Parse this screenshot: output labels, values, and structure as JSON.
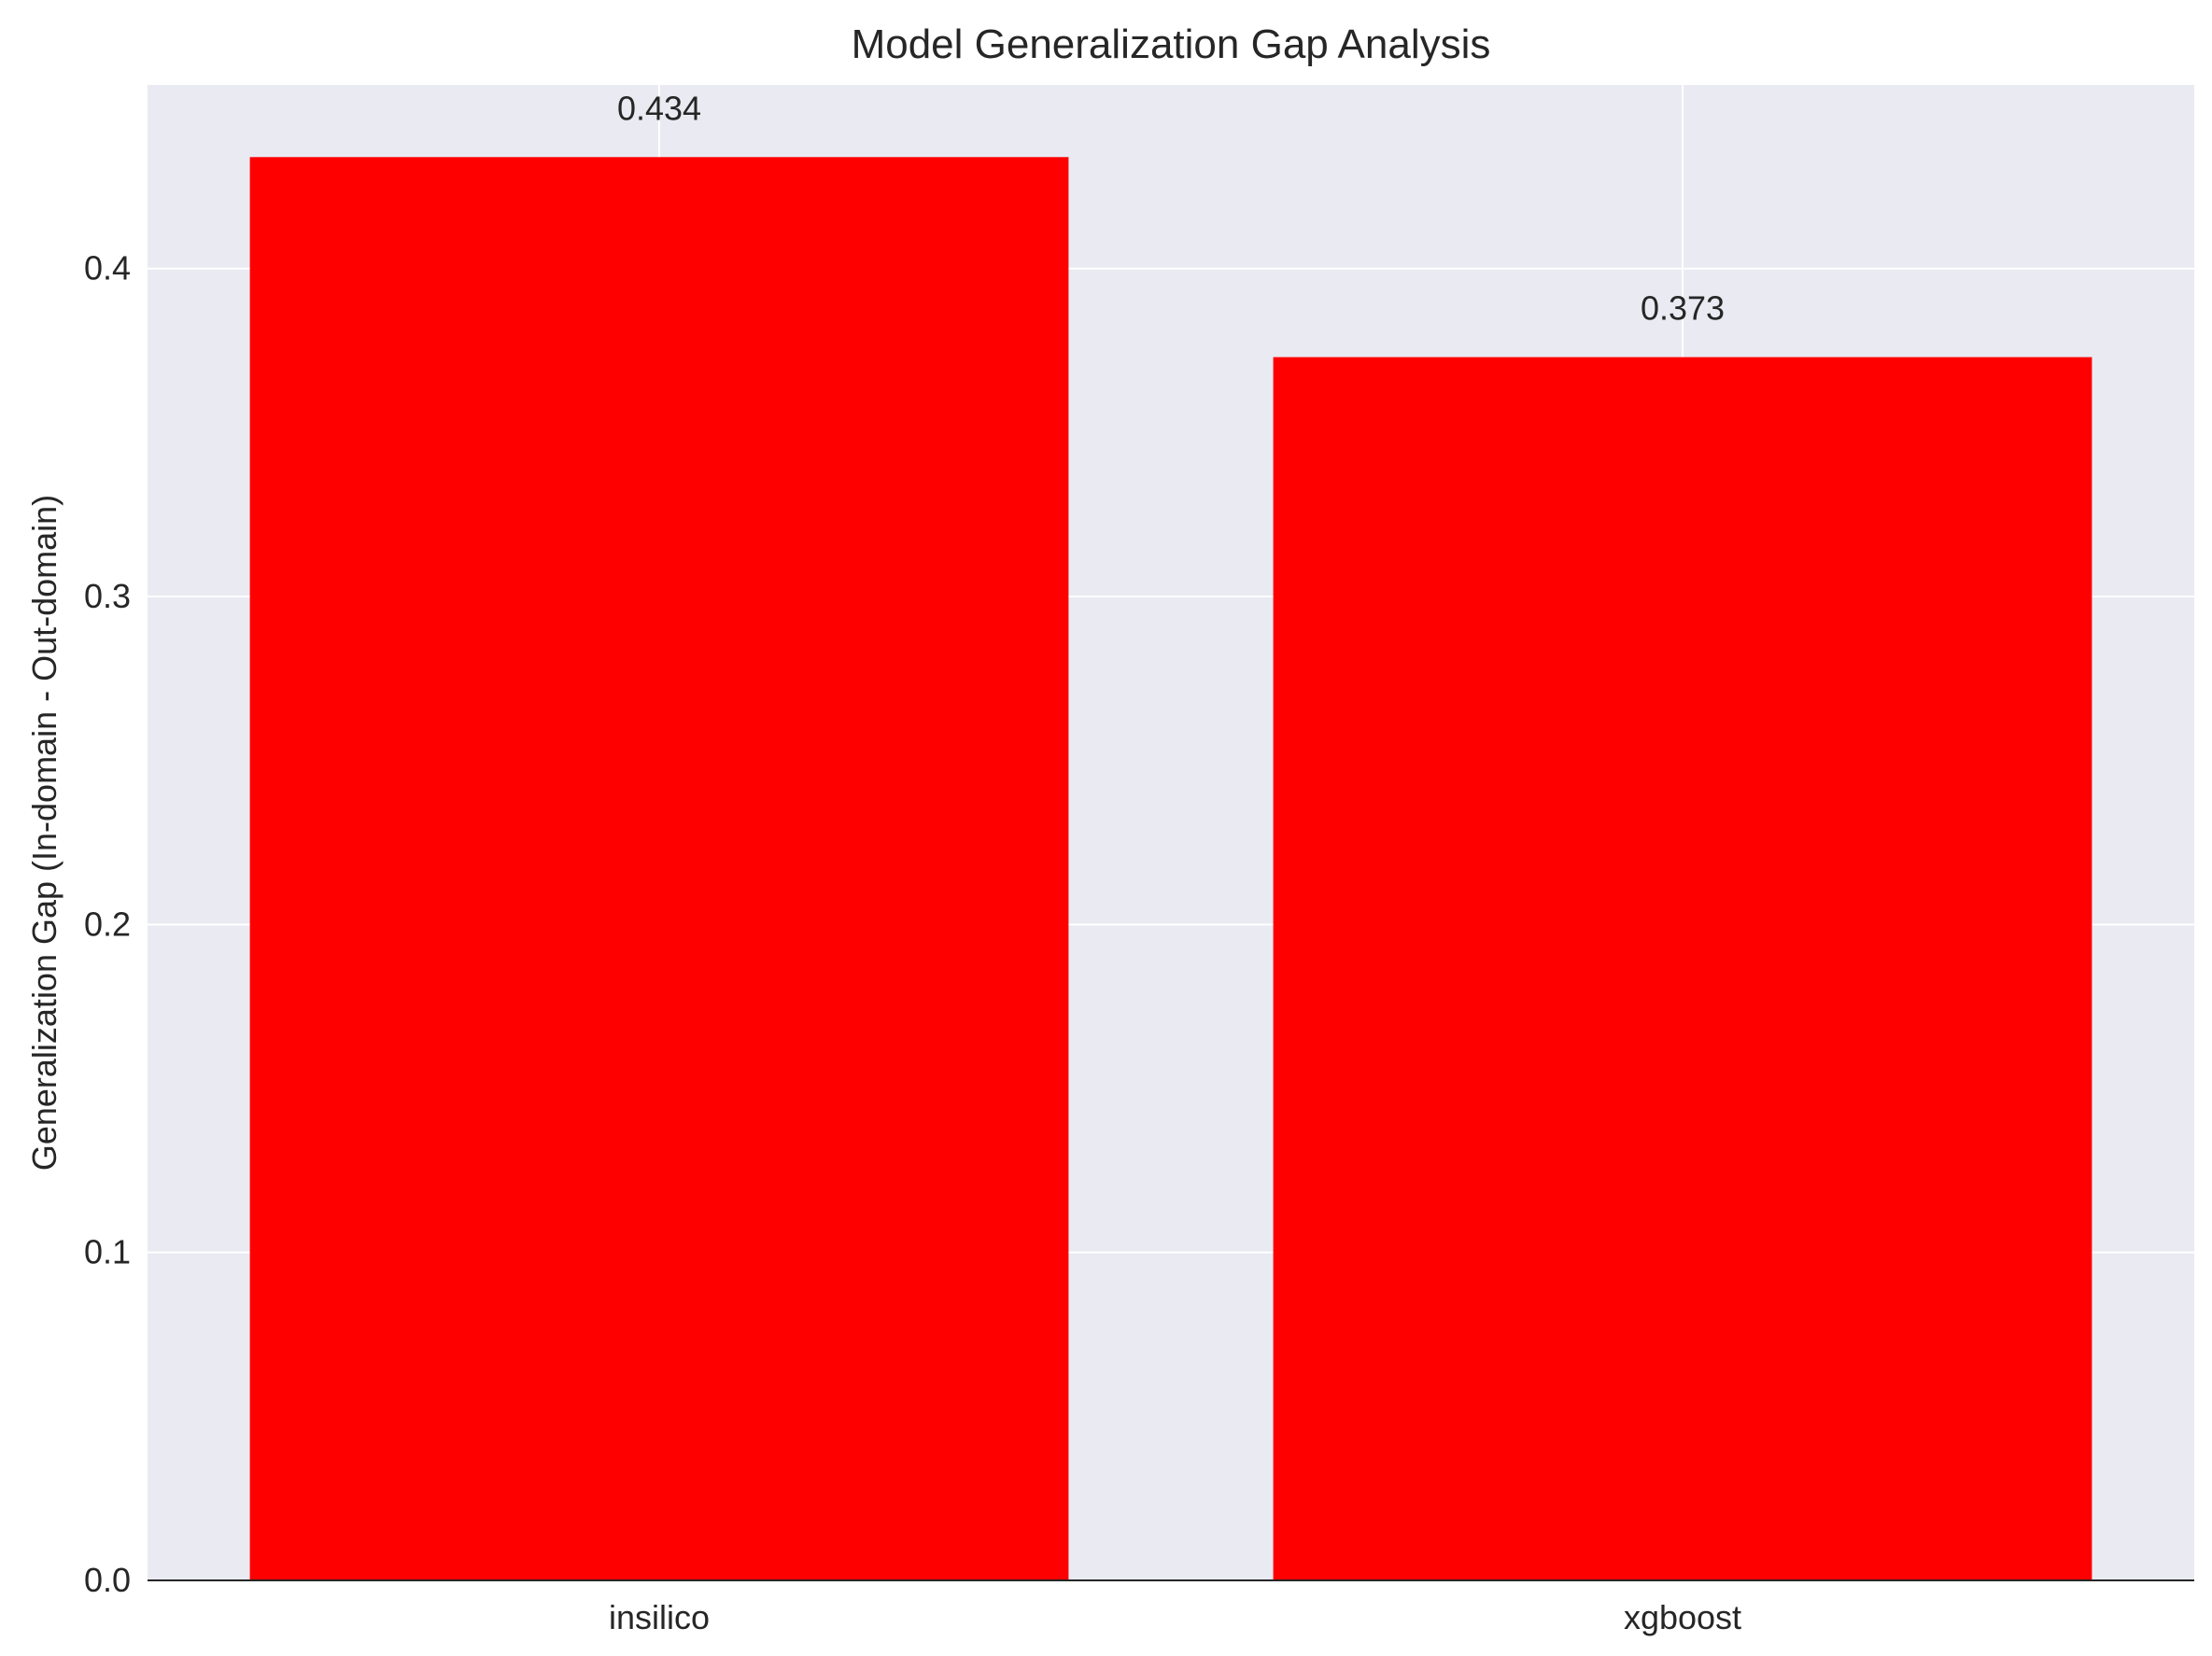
{
  "chart_data": {
    "type": "bar",
    "title": "Model Generalization Gap Analysis",
    "xlabel": "",
    "ylabel": "Generalization Gap (In-domain - Out-domain)",
    "categories": [
      "insilico",
      "xgboost"
    ],
    "values": [
      0.434,
      0.373
    ],
    "data_labels": [
      "0.434",
      "0.373"
    ],
    "ylim": [
      0,
      0.456
    ],
    "yticks": [
      0.0,
      0.1,
      0.2,
      0.3,
      0.4
    ],
    "ytick_labels": [
      "0.0",
      "0.1",
      "0.2",
      "0.3",
      "0.4"
    ],
    "grid": true,
    "colors": {
      "bar": "#ff0000",
      "plot_background": "#e9eaf2",
      "grid": "#ffffff",
      "axis": "#262626"
    }
  }
}
